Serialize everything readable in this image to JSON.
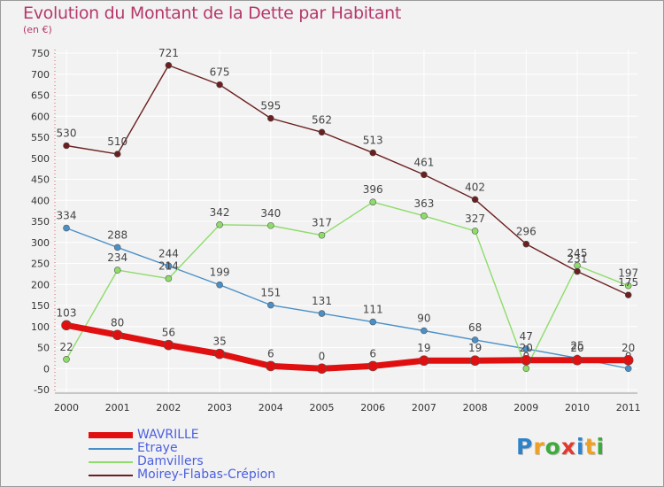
{
  "title": "Evolution du Montant de la Dette par Habitant",
  "subtitle": "(en €)",
  "logo": {
    "text": "Proxiti",
    "letters": [
      {
        "ch": "P",
        "color": "#2e82c8"
      },
      {
        "ch": "r",
        "color": "#f0a020"
      },
      {
        "ch": "o",
        "color": "#3cab3c"
      },
      {
        "ch": "x",
        "color": "#e03a2f"
      },
      {
        "ch": "i",
        "color": "#2e82c8"
      },
      {
        "ch": "t",
        "color": "#f0a020"
      },
      {
        "ch": "i",
        "color": "#3cab3c"
      }
    ]
  },
  "chart_data": {
    "type": "line",
    "title": "Evolution du Montant de la Dette par Habitant",
    "ylabel": "(en €)",
    "xlabel": "",
    "x": [
      "2000",
      "2001",
      "2002",
      "2003",
      "2004",
      "2005",
      "2006",
      "2007",
      "2008",
      "2009",
      "2010",
      "2011"
    ],
    "yticks": [
      -50,
      0,
      50,
      100,
      150,
      200,
      250,
      300,
      350,
      400,
      450,
      500,
      550,
      600,
      650,
      700,
      750
    ],
    "ylim": [
      -50,
      750
    ],
    "grid": true,
    "legend_position": "bottom-left",
    "series": [
      {
        "name": "WAVRILLE",
        "color": "#e01010",
        "thick": true,
        "values": [
          103,
          80,
          56,
          35,
          6,
          0,
          6,
          19,
          19,
          20,
          20,
          20
        ]
      },
      {
        "name": "Etraye",
        "color": "#4a90c8",
        "thick": false,
        "values": [
          334,
          288,
          244,
          199,
          151,
          131,
          111,
          90,
          68,
          47,
          25,
          0
        ]
      },
      {
        "name": "Damvillers",
        "color": "#8edc6a",
        "thick": false,
        "values": [
          22,
          234,
          214,
          342,
          340,
          317,
          396,
          363,
          327,
          0,
          245,
          197
        ]
      },
      {
        "name": "Moirey-Flabas-Crépion",
        "color": "#6b1f1f",
        "thick": false,
        "values": [
          530,
          510,
          721,
          675,
          595,
          562,
          513,
          461,
          402,
          296,
          231,
          175
        ]
      }
    ]
  }
}
